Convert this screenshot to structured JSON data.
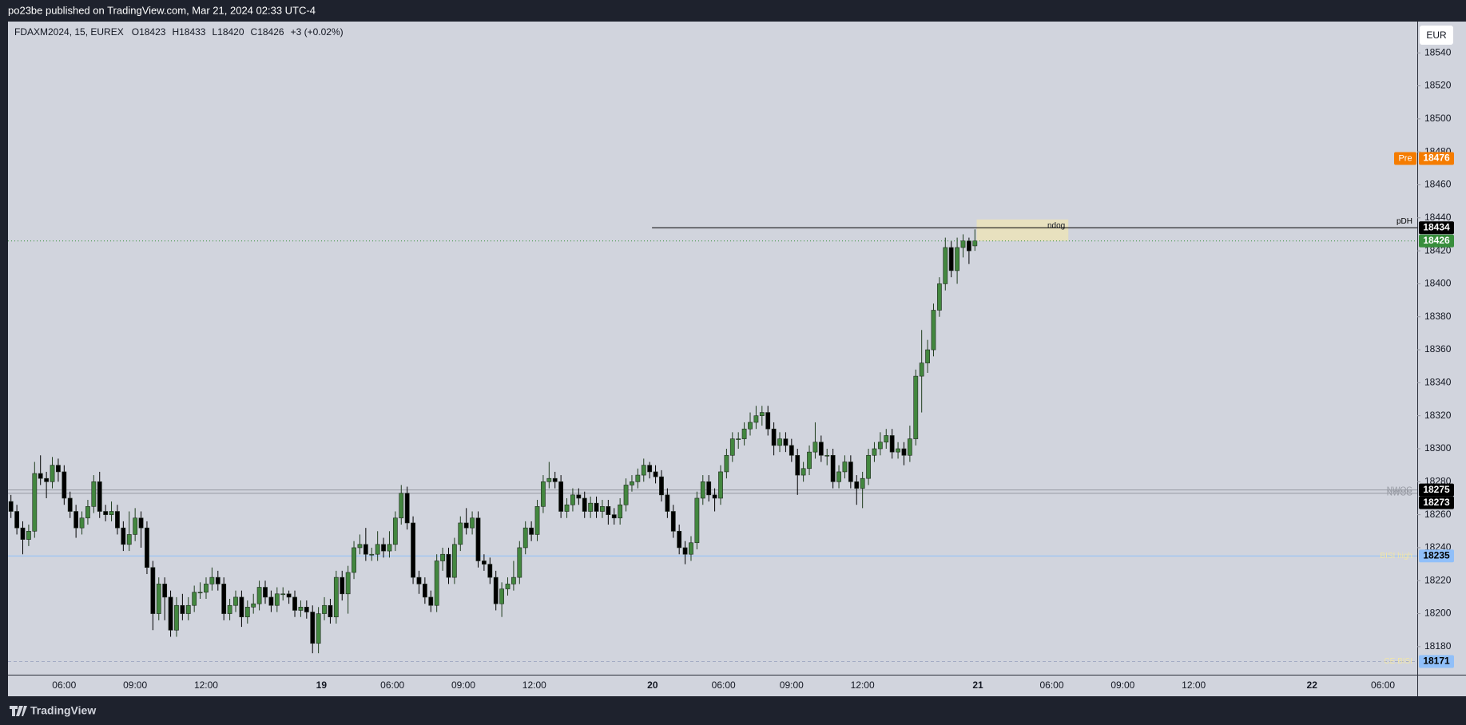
{
  "header": {
    "publisher": "po23be published on TradingView.com, Mar 21, 2024 02:33 UTC-4"
  },
  "footer": {
    "brand": "TradingView"
  },
  "chart_data": {
    "type": "candlestick",
    "currency": "EUR",
    "legend": {
      "symbol": "FDAXM2024, 15, EUREX",
      "open": "O18423",
      "high": "H18433",
      "low": "L18420",
      "close": "C18426",
      "change": "+3 (+0.02%)"
    },
    "up_color": "#43873f",
    "down_color": "#000000",
    "categories": [
      null,
      null,
      null,
      null,
      null,
      null,
      null,
      null,
      null,
      null,
      null,
      null,
      null,
      null,
      null,
      null,
      null,
      null,
      null,
      null,
      null,
      null,
      null,
      null,
      null,
      null,
      null,
      null,
      null,
      null,
      null,
      null,
      null,
      null,
      null,
      null,
      null,
      null,
      null,
      null,
      null,
      null,
      null,
      null,
      null,
      null,
      null,
      null,
      null,
      null,
      null,
      null,
      null,
      null,
      null,
      null,
      null,
      null,
      null,
      null,
      null,
      null,
      null,
      null,
      null,
      null,
      null,
      null,
      null,
      null,
      null,
      null,
      null,
      null,
      null,
      null,
      null,
      null,
      null,
      null,
      null,
      null,
      null,
      null,
      null,
      null,
      null,
      null,
      null,
      null,
      null,
      null,
      null,
      null,
      null,
      null,
      null,
      null,
      null,
      null,
      null,
      null,
      null,
      null,
      null,
      null,
      null,
      null,
      null,
      null,
      null,
      null,
      null,
      null,
      null,
      null,
      null,
      null,
      null,
      null,
      null,
      null,
      null,
      null,
      null,
      null,
      null,
      null,
      null,
      null,
      null,
      null,
      null,
      null,
      null,
      null,
      null,
      null,
      null,
      null,
      null,
      null,
      null,
      null,
      null,
      null,
      null,
      null,
      null,
      null,
      null,
      null,
      null,
      null,
      null,
      null,
      null,
      null,
      null,
      null,
      null,
      null,
      null,
      null
    ],
    "open": [
      18268,
      18262,
      18252,
      18245,
      18250,
      18285,
      18282,
      18280,
      18290,
      18286,
      18270,
      18262,
      18252,
      18258,
      18265,
      18280,
      18262,
      18260,
      18262,
      18252,
      18242,
      18248,
      18258,
      18252,
      18228,
      18200,
      18218,
      18210,
      18190,
      18205,
      18200,
      18205,
      18213,
      18213,
      18218,
      18222,
      18218,
      18200,
      18205,
      18210,
      18198,
      18204,
      18206,
      18216,
      18210,
      18205,
      18212,
      18212,
      18210,
      18202,
      18204,
      18201,
      18182,
      18200,
      18205,
      18198,
      18222,
      18212,
      18225,
      18240,
      18242,
      18236,
      18236,
      18242,
      18238,
      18242,
      18258,
      18273,
      18255,
      18222,
      18218,
      18210,
      18205,
      18232,
      18236,
      18222,
      18242,
      18255,
      18252,
      18258,
      18232,
      18230,
      18222,
      18206,
      18215,
      18218,
      18222,
      18240,
      18252,
      18248,
      18265,
      18280,
      18282,
      18280,
      18262,
      18266,
      18272,
      18270,
      18262,
      18267,
      18262,
      18265,
      18260,
      18258,
      18266,
      18278,
      18280,
      18284,
      18290,
      18286,
      18283,
      18272,
      18262,
      18250,
      18240,
      18236,
      18243,
      18270,
      18280,
      18272,
      18270,
      18286,
      18296,
      18306,
      18306,
      18312,
      18316,
      18320,
      18322,
      18312,
      18302,
      18306,
      18302,
      18296,
      18284,
      18288,
      18298,
      18304,
      18296,
      18296,
      18280,
      18286,
      18292,
      18280,
      18276,
      18282,
      18296,
      18300,
      18304,
      18308,
      18298,
      18300,
      18296,
      18306,
      18344,
      18352,
      18360,
      18384,
      18400,
      18422,
      18408,
      18422,
      18426,
      18423
    ],
    "high": [
      18272,
      18266,
      18256,
      18254,
      18292,
      18296,
      18286,
      18295,
      18294,
      18290,
      18274,
      18266,
      18262,
      18269,
      18284,
      18286,
      18266,
      18268,
      18266,
      18256,
      18262,
      18264,
      18262,
      18256,
      18232,
      18222,
      18222,
      18214,
      18210,
      18212,
      18210,
      18217,
      18219,
      18222,
      18228,
      18226,
      18222,
      18209,
      18214,
      18214,
      18208,
      18212,
      18220,
      18220,
      18214,
      18216,
      18216,
      18214,
      18214,
      18208,
      18208,
      18205,
      18204,
      18210,
      18209,
      18226,
      18226,
      18229,
      18244,
      18248,
      18252,
      18240,
      18250,
      18246,
      18250,
      18262,
      18278,
      18277,
      18259,
      18226,
      18222,
      18214,
      18236,
      18240,
      18240,
      18246,
      18259,
      18264,
      18262,
      18262,
      18236,
      18234,
      18226,
      18219,
      18222,
      18232,
      18244,
      18256,
      18256,
      18269,
      18284,
      18292,
      18286,
      18284,
      18270,
      18276,
      18276,
      18274,
      18271,
      18271,
      18269,
      18269,
      18264,
      18270,
      18282,
      18284,
      18288,
      18294,
      18292,
      18290,
      18287,
      18276,
      18266,
      18254,
      18244,
      18247,
      18274,
      18284,
      18284,
      18276,
      18290,
      18300,
      18310,
      18310,
      18316,
      18322,
      18326,
      18326,
      18326,
      18316,
      18310,
      18310,
      18306,
      18300,
      18292,
      18302,
      18316,
      18308,
      18300,
      18300,
      18290,
      18296,
      18296,
      18284,
      18286,
      18300,
      18304,
      18310,
      18312,
      18312,
      18304,
      18304,
      18314,
      18348,
      18372,
      18366,
      18388,
      18404,
      18428,
      18426,
      18428,
      18430,
      18428,
      18433
    ],
    "low": [
      18258,
      18248,
      18236,
      18241,
      18246,
      18278,
      18270,
      18276,
      18280,
      18266,
      18258,
      18246,
      18248,
      18254,
      18261,
      18258,
      18256,
      18256,
      18248,
      18238,
      18238,
      18244,
      18240,
      18224,
      18190,
      18196,
      18196,
      18186,
      18186,
      18196,
      18196,
      18201,
      18209,
      18209,
      18214,
      18214,
      18196,
      18196,
      18201,
      18192,
      18194,
      18200,
      18202,
      18206,
      18201,
      18201,
      18208,
      18206,
      18198,
      18198,
      18197,
      18176,
      18176,
      18196,
      18194,
      18194,
      18208,
      18200,
      18221,
      18236,
      18232,
      18232,
      18232,
      18234,
      18234,
      18238,
      18254,
      18251,
      18218,
      18212,
      18206,
      18201,
      18201,
      18226,
      18218,
      18218,
      18238,
      18248,
      18248,
      18228,
      18226,
      18218,
      18202,
      18198,
      18211,
      18214,
      18218,
      18236,
      18244,
      18244,
      18261,
      18276,
      18276,
      18258,
      18258,
      18262,
      18266,
      18258,
      18258,
      18258,
      18258,
      18254,
      18254,
      18254,
      18262,
      18274,
      18276,
      18280,
      18282,
      18279,
      18268,
      18258,
      18246,
      18236,
      18230,
      18232,
      18239,
      18266,
      18268,
      18262,
      18266,
      18282,
      18292,
      18300,
      18302,
      18308,
      18312,
      18314,
      18308,
      18296,
      18298,
      18298,
      18292,
      18272,
      18280,
      18284,
      18294,
      18292,
      18290,
      18276,
      18276,
      18282,
      18276,
      18266,
      18264,
      18278,
      18292,
      18296,
      18300,
      18294,
      18294,
      18290,
      18292,
      18302,
      18322,
      18346,
      18356,
      18380,
      18396,
      18404,
      18400,
      18416,
      18412,
      18420
    ],
    "close": [
      18262,
      18252,
      18245,
      18250,
      18285,
      18282,
      18280,
      18290,
      18286,
      18270,
      18262,
      18252,
      18258,
      18265,
      18280,
      18262,
      18260,
      18262,
      18252,
      18242,
      18248,
      18258,
      18252,
      18228,
      18200,
      18218,
      18210,
      18190,
      18205,
      18200,
      18205,
      18213,
      18213,
      18218,
      18222,
      18218,
      18200,
      18205,
      18210,
      18198,
      18204,
      18206,
      18216,
      18210,
      18205,
      18212,
      18212,
      18210,
      18202,
      18204,
      18201,
      18182,
      18200,
      18205,
      18198,
      18222,
      18212,
      18225,
      18240,
      18242,
      18236,
      18236,
      18242,
      18238,
      18242,
      18258,
      18273,
      18255,
      18222,
      18218,
      18210,
      18205,
      18232,
      18236,
      18222,
      18242,
      18255,
      18252,
      18258,
      18232,
      18230,
      18222,
      18206,
      18215,
      18218,
      18222,
      18240,
      18252,
      18248,
      18265,
      18280,
      18282,
      18280,
      18262,
      18266,
      18272,
      18270,
      18262,
      18267,
      18262,
      18265,
      18260,
      18258,
      18266,
      18278,
      18280,
      18284,
      18290,
      18286,
      18283,
      18272,
      18262,
      18250,
      18240,
      18236,
      18243,
      18270,
      18280,
      18272,
      18270,
      18286,
      18296,
      18306,
      18306,
      18312,
      18316,
      18320,
      18322,
      18312,
      18302,
      18306,
      18302,
      18296,
      18284,
      18288,
      18298,
      18304,
      18296,
      18296,
      18280,
      18286,
      18292,
      18280,
      18276,
      18282,
      18296,
      18300,
      18304,
      18308,
      18298,
      18300,
      18296,
      18306,
      18344,
      18352,
      18360,
      18384,
      18400,
      18422,
      18408,
      18422,
      18426,
      18420,
      18426
    ],
    "last_price_color": "#388e3c",
    "xlim": [
      -0.5,
      237.8
    ],
    "xticks": [
      {
        "value": 9,
        "label": "06:00"
      },
      {
        "value": 21,
        "label": "09:00"
      },
      {
        "value": 33,
        "label": "12:00"
      },
      {
        "value": 52.5,
        "label": "19"
      },
      {
        "value": 64.5,
        "label": "06:00"
      },
      {
        "value": 76.5,
        "label": "09:00"
      },
      {
        "value": 88.5,
        "label": "12:00"
      },
      {
        "value": 108.5,
        "label": "20"
      },
      {
        "value": 120.5,
        "label": "06:00"
      },
      {
        "value": 132,
        "label": "09:00"
      },
      {
        "value": 144,
        "label": "12:00"
      },
      {
        "value": 163.5,
        "label": "21"
      },
      {
        "value": 176,
        "label": "06:00"
      },
      {
        "value": 188,
        "label": "09:00"
      },
      {
        "value": 200,
        "label": "12:00"
      },
      {
        "value": 220,
        "label": "22"
      },
      {
        "value": 232,
        "label": "06:00"
      }
    ],
    "ylim": [
      18163,
      18559
    ],
    "yticks": [
      18180,
      18200,
      18220,
      18240,
      18260,
      18280,
      18300,
      18320,
      18340,
      18360,
      18380,
      18400,
      18420,
      18440,
      18460,
      18480,
      18500,
      18520,
      18540
    ],
    "levels": [
      {
        "name": "pDH",
        "value": 18434,
        "color": "#000000",
        "style": "solid",
        "label_color": "#000000",
        "tag_color": "#000000",
        "tag_text": "#ffffff"
      },
      {
        "name": "NWOG",
        "value": 18275,
        "color": "#9598a1",
        "style": "solid",
        "label_color": "#9598a1",
        "tag_color": "#000000",
        "tag_text": "#ffffff"
      },
      {
        "name": "NWOG",
        "value": 18273,
        "color": "#9598a1",
        "style": "solid",
        "label_color": "#9598a1",
        "tag_color": "#000000",
        "tag_text": "#ffffff"
      },
      {
        "name": "BISI high",
        "value": 18235,
        "color": "#90bff9",
        "style": "solid",
        "label_color": "#f2e6a6",
        "tag_color": "#90bff9",
        "tag_text": "#000000"
      },
      {
        "name": "CE BISI",
        "value": 18171,
        "color": "#a4acc4",
        "style": "dashed",
        "label_color": "#f2e6a6",
        "tag_color": "#90bff9",
        "tag_text": "#000000"
      }
    ],
    "zones": [
      {
        "name": "ndog",
        "range": [
          18426,
          18439
        ],
        "color": "#efe6b4"
      }
    ],
    "pre_market": {
      "label": "Pre",
      "value": 18476,
      "color": "#f57c00"
    }
  }
}
